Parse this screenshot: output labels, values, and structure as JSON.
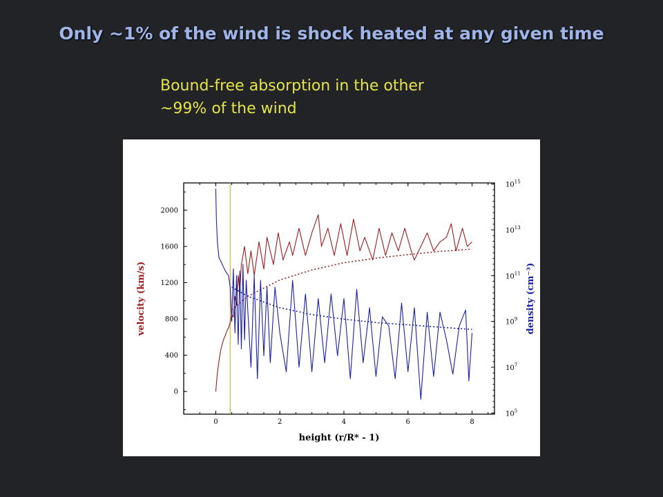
{
  "slide": {
    "title": "Only ~1% of the wind is shock heated at any given time",
    "subtitle_lines": [
      "Bound-free absorption in the other",
      "~99% of the wind"
    ]
  },
  "colors": {
    "background": "#222326",
    "title": "#9fb4e8",
    "subtitle": "#e6e44a",
    "velocity": "#9b1c1c",
    "density": "#1a1fa0",
    "marker": "#c9a227"
  },
  "chart_data": {
    "type": "line",
    "xlabel": "height (r/R* - 1)",
    "ylabel": "velocity (km/s)",
    "y2label": "density (cm⁻³)",
    "xlim": [
      -1,
      8.7
    ],
    "ylim": [
      -250,
      2300
    ],
    "y2lim": [
      5,
      15
    ],
    "y2scale": "log",
    "x_ticks": [
      "0",
      "2",
      "4",
      "6",
      "8"
    ],
    "x_tick_values": [
      0,
      2,
      4,
      6,
      8
    ],
    "y_ticks": [
      "0",
      "400",
      "800",
      "1200",
      "1600",
      "2000"
    ],
    "y_tick_values": [
      0,
      400,
      800,
      1200,
      1600,
      2000
    ],
    "y2_ticks": [
      {
        "base": "10",
        "exp": "5",
        "value": 5
      },
      {
        "base": "10",
        "exp": "7",
        "value": 7
      },
      {
        "base": "10",
        "exp": "9",
        "value": 9
      },
      {
        "base": "10",
        "exp": "11",
        "value": 11
      },
      {
        "base": "10",
        "exp": "13",
        "value": 13
      },
      {
        "base": "10",
        "exp": "15",
        "value": 15
      }
    ],
    "marker_line_x": 0.45,
    "series": [
      {
        "name": "velocity",
        "axis": "left",
        "x": [
          0,
          0.05,
          0.1,
          0.15,
          0.2,
          0.25,
          0.3,
          0.35,
          0.4,
          0.45,
          0.5,
          0.55,
          0.6,
          0.65,
          0.7,
          0.75,
          0.8,
          0.9,
          1.0,
          1.1,
          1.2,
          1.35,
          1.5,
          1.6,
          1.8,
          1.95,
          2.1,
          2.3,
          2.4,
          2.6,
          2.8,
          3.0,
          3.2,
          3.3,
          3.5,
          3.7,
          3.9,
          4.1,
          4.3,
          4.5,
          4.65,
          4.9,
          5.1,
          5.3,
          5.5,
          5.7,
          5.9,
          6.1,
          6.2,
          6.4,
          6.6,
          6.8,
          7.0,
          7.2,
          7.35,
          7.5,
          7.7,
          7.85,
          8.0
        ],
        "values": [
          0,
          200,
          330,
          450,
          520,
          580,
          620,
          670,
          700,
          760,
          850,
          820,
          1050,
          950,
          1280,
          1100,
          1400,
          1600,
          1300,
          1550,
          1280,
          1650,
          1350,
          1700,
          1400,
          1750,
          1450,
          1650,
          1500,
          1800,
          1500,
          1750,
          1950,
          1600,
          1800,
          1500,
          1850,
          1500,
          1900,
          1550,
          1700,
          1450,
          1800,
          1500,
          1750,
          1550,
          1800,
          1550,
          1450,
          1600,
          1750,
          1550,
          1650,
          1700,
          1850,
          1550,
          1800,
          1600,
          1650
        ]
      },
      {
        "name": "velocity mean",
        "axis": "left",
        "style": "dotted",
        "x": [
          0.5,
          1,
          2,
          3,
          4,
          5,
          6,
          7,
          8
        ],
        "values": [
          900,
          1050,
          1230,
          1340,
          1420,
          1470,
          1510,
          1545,
          1570
        ]
      },
      {
        "name": "density",
        "axis": "right",
        "x": [
          0,
          0.02,
          0.05,
          0.1,
          0.2,
          0.3,
          0.4,
          0.45,
          0.5,
          0.55,
          0.6,
          0.65,
          0.7,
          0.75,
          0.8,
          0.85,
          0.9,
          0.95,
          1.0,
          1.1,
          1.2,
          1.3,
          1.4,
          1.5,
          1.6,
          1.7,
          1.85,
          2.0,
          2.2,
          2.4,
          2.6,
          2.8,
          3.0,
          3.2,
          3.4,
          3.6,
          3.8,
          4.0,
          4.2,
          4.4,
          4.6,
          4.8,
          5.0,
          5.2,
          5.4,
          5.6,
          5.8,
          6.0,
          6.2,
          6.4,
          6.6,
          6.8,
          7.0,
          7.2,
          7.4,
          7.6,
          7.8,
          7.9,
          8.0
        ],
        "values": [
          14.8,
          13.5,
          12.5,
          11.8,
          11.5,
          11.2,
          11.0,
          10.5,
          9.0,
          11.3,
          8.5,
          11.0,
          8.0,
          11.2,
          7.8,
          11.5,
          8.2,
          10.8,
          9.5,
          7.0,
          11.0,
          6.5,
          10.8,
          7.5,
          10.5,
          7.2,
          10.5,
          8.5,
          6.8,
          10.8,
          7.0,
          10.2,
          6.8,
          10.0,
          7.2,
          10.2,
          7.5,
          10.0,
          6.5,
          10.4,
          7.2,
          9.6,
          6.6,
          9.2,
          8.8,
          6.5,
          9.8,
          6.8,
          9.6,
          5.6,
          9.4,
          6.6,
          9.4,
          8.2,
          6.7,
          8.8,
          9.5,
          6.4,
          8.5
        ]
      },
      {
        "name": "density mean",
        "axis": "right",
        "style": "dotted",
        "x": [
          0.5,
          1,
          2,
          3,
          4,
          5,
          6,
          7,
          8
        ],
        "values": [
          10.5,
          10.1,
          9.6,
          9.3,
          9.1,
          8.95,
          8.85,
          8.75,
          8.65
        ]
      }
    ]
  }
}
